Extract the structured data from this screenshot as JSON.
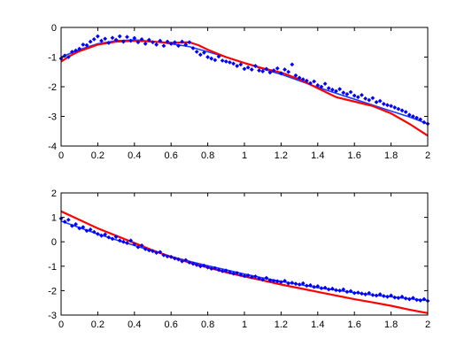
{
  "colors": {
    "scatter": "#0000ff",
    "fit_blue": "#1a3cff",
    "model_red": "#ff0000",
    "axes": "#000000",
    "background": "#ffffff"
  },
  "chart_data": [
    {
      "type": "scatter",
      "title": "",
      "xlabel": "",
      "ylabel": "",
      "xlim": [
        0,
        2
      ],
      "ylim": [
        -4,
        0
      ],
      "xticks": [
        0,
        0.2,
        0.4,
        0.6,
        0.8,
        1,
        1.2,
        1.4,
        1.6,
        1.8,
        2
      ],
      "yticks": [
        0,
        -1,
        -2,
        -3,
        -4
      ],
      "x_tick_labels": [
        "0",
        "0.2",
        "0.4",
        "0.6",
        "0.8",
        "1",
        "1.2",
        "1.4",
        "1.6",
        "1.8",
        "2"
      ],
      "y_tick_labels": [
        "0",
        "-1",
        "-2",
        "-3",
        "-4"
      ],
      "grid": false,
      "legend": "none",
      "series": [
        {
          "type": "scatter",
          "color": "#0000ff",
          "marker": "diamond",
          "x": [
            0.0,
            0.02,
            0.04,
            0.06,
            0.08,
            0.1,
            0.12,
            0.14,
            0.16,
            0.18,
            0.2,
            0.22,
            0.24,
            0.26,
            0.28,
            0.3,
            0.32,
            0.34,
            0.36,
            0.38,
            0.4,
            0.42,
            0.44,
            0.46,
            0.48,
            0.5,
            0.52,
            0.54,
            0.56,
            0.58,
            0.6,
            0.62,
            0.64,
            0.66,
            0.68,
            0.7,
            0.72,
            0.74,
            0.76,
            0.78,
            0.8,
            0.82,
            0.84,
            0.86,
            0.88,
            0.9,
            0.92,
            0.94,
            0.96,
            0.98,
            1.0,
            1.02,
            1.04,
            1.06,
            1.08,
            1.1,
            1.12,
            1.14,
            1.16,
            1.18,
            1.2,
            1.22,
            1.24,
            1.26,
            1.28,
            1.3,
            1.32,
            1.34,
            1.36,
            1.38,
            1.4,
            1.42,
            1.44,
            1.46,
            1.48,
            1.5,
            1.52,
            1.54,
            1.56,
            1.58,
            1.6,
            1.62,
            1.64,
            1.66,
            1.68,
            1.7,
            1.72,
            1.74,
            1.76,
            1.78,
            1.8,
            1.82,
            1.84,
            1.86,
            1.88,
            1.9,
            1.92,
            1.94,
            1.96,
            1.98,
            2.0
          ],
          "y": [
            -1.05,
            -0.95,
            -1.0,
            -0.82,
            -0.78,
            -0.72,
            -0.58,
            -0.6,
            -0.48,
            -0.4,
            -0.3,
            -0.45,
            -0.38,
            -0.52,
            -0.35,
            -0.42,
            -0.3,
            -0.48,
            -0.32,
            -0.45,
            -0.36,
            -0.5,
            -0.4,
            -0.55,
            -0.42,
            -0.5,
            -0.58,
            -0.45,
            -0.62,
            -0.48,
            -0.55,
            -0.5,
            -0.62,
            -0.48,
            -0.58,
            -0.5,
            -0.7,
            -0.82,
            -0.92,
            -0.85,
            -1.0,
            -1.05,
            -1.1,
            -0.98,
            -1.12,
            -1.15,
            -1.18,
            -1.22,
            -1.3,
            -1.25,
            -1.4,
            -1.35,
            -1.42,
            -1.3,
            -1.45,
            -1.48,
            -1.4,
            -1.52,
            -1.45,
            -1.38,
            -1.55,
            -1.42,
            -1.5,
            -1.25,
            -1.62,
            -1.7,
            -1.75,
            -1.8,
            -1.88,
            -1.82,
            -1.95,
            -2.0,
            -1.9,
            -2.05,
            -2.1,
            -2.15,
            -2.08,
            -2.2,
            -2.25,
            -2.18,
            -2.3,
            -2.35,
            -2.28,
            -2.4,
            -2.45,
            -2.38,
            -2.52,
            -2.48,
            -2.58,
            -2.62,
            -2.65,
            -2.7,
            -2.75,
            -2.8,
            -2.85,
            -2.95,
            -3.0,
            -3.05,
            -3.1,
            -3.2,
            -3.25
          ]
        },
        {
          "type": "line",
          "color": "#1a3cff",
          "x": [
            0,
            0.1,
            0.2,
            0.3,
            0.4,
            0.5,
            0.6,
            0.7,
            0.8,
            0.9,
            1.0,
            1.1,
            1.2,
            1.3,
            1.4,
            1.5,
            1.6,
            1.7,
            1.8,
            1.9,
            2.0
          ],
          "y": [
            -1.0,
            -0.75,
            -0.55,
            -0.45,
            -0.42,
            -0.47,
            -0.55,
            -0.65,
            -0.82,
            -1.0,
            -1.2,
            -1.4,
            -1.58,
            -1.8,
            -2.02,
            -2.22,
            -2.42,
            -2.62,
            -2.82,
            -3.02,
            -3.25
          ]
        },
        {
          "type": "line",
          "color": "#ff0000",
          "x": [
            0,
            0.05,
            0.1,
            0.2,
            0.3,
            0.4,
            0.5,
            0.6,
            0.7,
            0.75,
            0.8,
            0.9,
            1.0,
            1.1,
            1.2,
            1.3,
            1.4,
            1.5,
            1.6,
            1.7,
            1.8,
            1.9,
            2.0
          ],
          "y": [
            -1.15,
            -0.95,
            -0.8,
            -0.58,
            -0.48,
            -0.45,
            -0.48,
            -0.52,
            -0.5,
            -0.6,
            -0.75,
            -1.0,
            -1.2,
            -1.38,
            -1.52,
            -1.75,
            -2.05,
            -2.35,
            -2.5,
            -2.65,
            -2.9,
            -3.25,
            -3.65
          ]
        }
      ]
    },
    {
      "type": "scatter",
      "title": "",
      "xlabel": "",
      "ylabel": "",
      "xlim": [
        0,
        2
      ],
      "ylim": [
        -3,
        2
      ],
      "xticks": [
        0,
        0.2,
        0.4,
        0.6,
        0.8,
        1,
        1.2,
        1.4,
        1.6,
        1.8,
        2
      ],
      "yticks": [
        2,
        1,
        0,
        -1,
        -2,
        -3
      ],
      "x_tick_labels": [
        "0",
        "0.2",
        "0.4",
        "0.6",
        "0.8",
        "1",
        "1.2",
        "1.4",
        "1.6",
        "1.8",
        "2"
      ],
      "y_tick_labels": [
        "2",
        "1",
        "0",
        "-1",
        "-2",
        "-3"
      ],
      "grid": false,
      "legend": "none",
      "series": [
        {
          "type": "scatter",
          "color": "#0000ff",
          "marker": "diamond",
          "x": [
            0.0,
            0.02,
            0.04,
            0.06,
            0.08,
            0.1,
            0.12,
            0.14,
            0.16,
            0.18,
            0.2,
            0.22,
            0.24,
            0.26,
            0.28,
            0.3,
            0.32,
            0.34,
            0.36,
            0.38,
            0.4,
            0.42,
            0.44,
            0.46,
            0.48,
            0.5,
            0.52,
            0.54,
            0.56,
            0.58,
            0.6,
            0.62,
            0.64,
            0.66,
            0.68,
            0.7,
            0.72,
            0.74,
            0.76,
            0.78,
            0.8,
            0.82,
            0.84,
            0.86,
            0.88,
            0.9,
            0.92,
            0.94,
            0.96,
            0.98,
            1.0,
            1.02,
            1.04,
            1.06,
            1.08,
            1.1,
            1.12,
            1.14,
            1.16,
            1.18,
            1.2,
            1.22,
            1.24,
            1.26,
            1.28,
            1.3,
            1.32,
            1.34,
            1.36,
            1.38,
            1.4,
            1.42,
            1.44,
            1.46,
            1.48,
            1.5,
            1.52,
            1.54,
            1.56,
            1.58,
            1.6,
            1.62,
            1.64,
            1.66,
            1.68,
            1.7,
            1.72,
            1.74,
            1.76,
            1.78,
            1.8,
            1.82,
            1.84,
            1.86,
            1.88,
            1.9,
            1.92,
            1.94,
            1.96,
            1.98,
            2.0
          ],
          "y": [
            0.95,
            0.82,
            0.9,
            0.65,
            0.72,
            0.55,
            0.6,
            0.45,
            0.5,
            0.4,
            0.32,
            0.25,
            0.3,
            0.18,
            0.12,
            0.2,
            0.05,
            0.0,
            -0.05,
            0.05,
            -0.1,
            -0.22,
            -0.15,
            -0.3,
            -0.35,
            -0.38,
            -0.45,
            -0.42,
            -0.55,
            -0.6,
            -0.62,
            -0.68,
            -0.72,
            -0.8,
            -0.75,
            -0.85,
            -0.9,
            -0.95,
            -1.0,
            -0.98,
            -1.05,
            -1.1,
            -1.08,
            -1.15,
            -1.2,
            -1.18,
            -1.25,
            -1.3,
            -1.28,
            -1.35,
            -1.4,
            -1.38,
            -1.45,
            -1.42,
            -1.5,
            -1.55,
            -1.48,
            -1.58,
            -1.6,
            -1.62,
            -1.65,
            -1.6,
            -1.7,
            -1.68,
            -1.72,
            -1.75,
            -1.7,
            -1.8,
            -1.78,
            -1.85,
            -1.82,
            -1.9,
            -1.88,
            -1.95,
            -1.92,
            -1.98,
            -2.0,
            -1.95,
            -2.05,
            -2.02,
            -2.1,
            -2.08,
            -2.12,
            -2.15,
            -2.1,
            -2.18,
            -2.2,
            -2.15,
            -2.22,
            -2.25,
            -2.2,
            -2.28,
            -2.3,
            -2.25,
            -2.32,
            -2.35,
            -2.3,
            -2.38,
            -2.4,
            -2.35,
            -2.42
          ]
        },
        {
          "type": "line",
          "color": "#1a3cff",
          "x": [
            0,
            0.1,
            0.2,
            0.3,
            0.4,
            0.5,
            0.6,
            0.7,
            0.8,
            0.9,
            1.0,
            1.1,
            1.2,
            1.3,
            1.4,
            1.5,
            1.6,
            1.7,
            1.8,
            1.9,
            2.0
          ],
          "y": [
            0.85,
            0.58,
            0.32,
            0.08,
            -0.15,
            -0.38,
            -0.6,
            -0.8,
            -0.98,
            -1.15,
            -1.32,
            -1.48,
            -1.62,
            -1.75,
            -1.88,
            -1.98,
            -2.08,
            -2.18,
            -2.25,
            -2.33,
            -2.4
          ]
        },
        {
          "type": "line",
          "color": "#ff0000",
          "x": [
            0,
            0.1,
            0.2,
            0.3,
            0.4,
            0.5,
            0.6,
            0.7,
            0.8,
            0.9,
            1.0,
            1.1,
            1.2,
            1.3,
            1.4,
            1.5,
            1.6,
            1.7,
            1.8,
            1.9,
            2.0
          ],
          "y": [
            1.25,
            0.9,
            0.55,
            0.25,
            -0.05,
            -0.35,
            -0.62,
            -0.85,
            -1.05,
            -1.25,
            -1.42,
            -1.58,
            -1.75,
            -1.9,
            -2.05,
            -2.2,
            -2.35,
            -2.48,
            -2.62,
            -2.78,
            -2.92
          ]
        }
      ]
    }
  ]
}
